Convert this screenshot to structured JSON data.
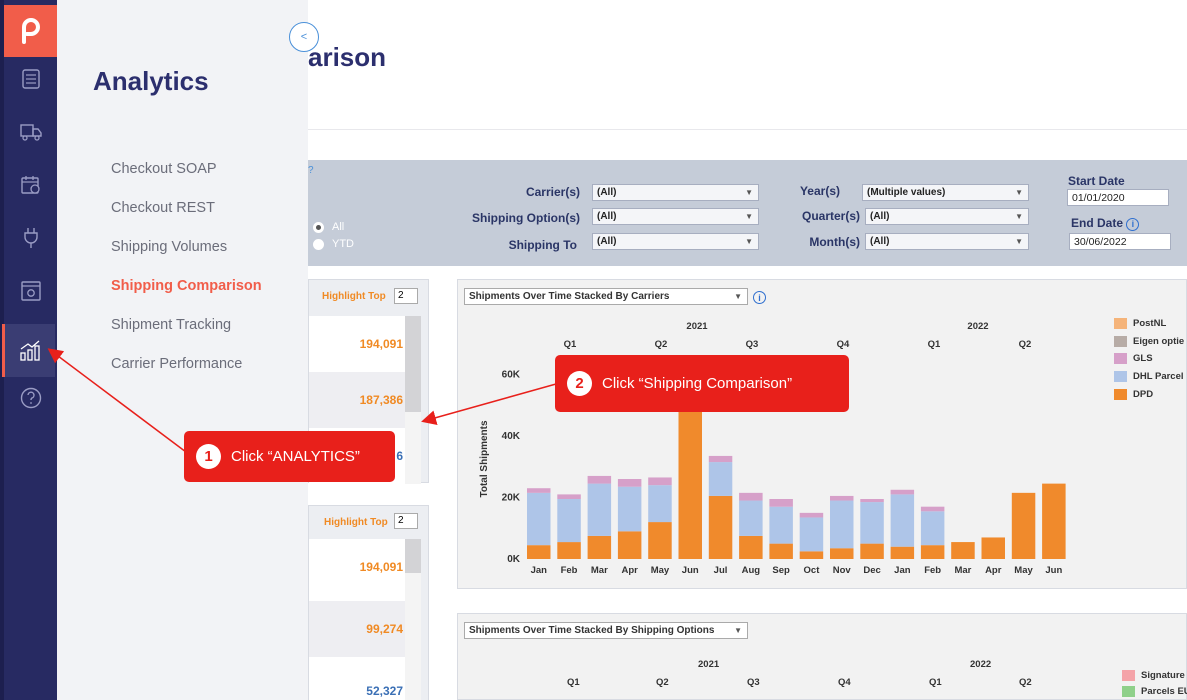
{
  "flyout": {
    "title": "Analytics",
    "items": [
      {
        "label": "Checkout SOAP"
      },
      {
        "label": "Checkout REST"
      },
      {
        "label": "Shipping Volumes"
      },
      {
        "label": "Shipping Comparison"
      },
      {
        "label": "Shipment Tracking"
      },
      {
        "label": "Carrier Performance"
      }
    ],
    "collapse_label": "<"
  },
  "page": {
    "title_visible": "arison"
  },
  "filters": {
    "carriers": {
      "label": "Carrier(s)",
      "value": "(All)"
    },
    "shipping_option": {
      "label": "Shipping Option(s)",
      "value": "(All)"
    },
    "shipping_to": {
      "label": "Shipping To",
      "value": "(All)"
    },
    "year": {
      "label": "Year(s)",
      "value": "(Multiple values)"
    },
    "quarter": {
      "label": "Quarter(s)",
      "value": "(All)"
    },
    "month": {
      "label": "Month(s)",
      "value": "(All)"
    },
    "start_date": {
      "label": "Start Date",
      "value": "01/01/2020"
    },
    "end_date": {
      "label": "End Date",
      "value": "30/06/2022"
    },
    "radio_all": "All",
    "radio_ytd": "YTD",
    "stray_text": "?"
  },
  "panels": {
    "top": {
      "highlight_label": "Highlight Top",
      "highlight_value": "2",
      "values": [
        "194,091",
        "187,386",
        "6"
      ]
    },
    "bottom": {
      "highlight_label": "Highlight Top",
      "highlight_value": "2",
      "values": [
        "194,091",
        "99,274",
        "52,327"
      ]
    }
  },
  "chart1": {
    "dropdown": "Shipments Over Time Stacked By Carriers",
    "ylabel": "Total Shipments",
    "years": [
      {
        "label": "2021"
      },
      {
        "label": "2022"
      }
    ],
    "quarters": [
      "Q1",
      "Q2",
      "Q3",
      "Q4",
      "Q1",
      "Q2"
    ],
    "legend": [
      {
        "name": "PostNL",
        "color": "#f5b47a"
      },
      {
        "name": "Eigen optie",
        "color": "#b7aca6"
      },
      {
        "name": "GLS",
        "color": "#d6a0c9"
      },
      {
        "name": "DHL Parcel",
        "color": "#aec5e8"
      },
      {
        "name": "DPD",
        "color": "#f08a2c"
      }
    ]
  },
  "chart_data": {
    "type": "bar",
    "stacked": true,
    "categories": [
      "Jan",
      "Feb",
      "Mar",
      "Apr",
      "May",
      "Jun",
      "Jul",
      "Aug",
      "Sep",
      "Oct",
      "Nov",
      "Dec",
      "Jan",
      "Feb",
      "Mar",
      "Apr",
      "May",
      "Jun"
    ],
    "ylabel": "Total Shipments",
    "yticks": [
      "0K",
      "20K",
      "40K",
      "60K"
    ],
    "ylim": [
      0,
      65000
    ],
    "series": [
      {
        "name": "DPD",
        "color": "#f08a2c",
        "values": [
          4500,
          5500,
          7500,
          9000,
          12000,
          48000,
          20500,
          7500,
          5000,
          2500,
          3500,
          5000,
          4000,
          4500,
          5500,
          7000,
          21500,
          24500
        ]
      },
      {
        "name": "DHL Parcel",
        "color": "#aec5e8",
        "values": [
          17000,
          14000,
          17000,
          14500,
          12000,
          0,
          11000,
          11500,
          12000,
          11000,
          15500,
          13500,
          17000,
          11000,
          0,
          0,
          0,
          0
        ]
      },
      {
        "name": "GLS",
        "color": "#d6a0c9",
        "values": [
          1500,
          1500,
          2500,
          2500,
          2500,
          0,
          2000,
          2500,
          2500,
          1500,
          1500,
          1000,
          1500,
          1500,
          0,
          0,
          0,
          0
        ]
      }
    ]
  },
  "chart2": {
    "dropdown": "Shipments Over Time Stacked By Shipping Options",
    "years": [
      {
        "label": "2021"
      },
      {
        "label": "2022"
      }
    ],
    "quarters": [
      "Q1",
      "Q2",
      "Q3",
      "Q4",
      "Q1",
      "Q2"
    ],
    "legend": [
      {
        "name": "Signature",
        "color": "#f4a3a8"
      },
      {
        "name": "Parcels EU",
        "color": "#8fd08a"
      }
    ]
  },
  "callouts": [
    {
      "num": "1",
      "text": "Click “ANALYTICS”"
    },
    {
      "num": "2",
      "text": "Click “Shipping Comparison”"
    }
  ],
  "icons": [
    "logo-icon",
    "orders-icon",
    "truck-icon",
    "calendar-icon",
    "plug-icon",
    "settings-window-icon",
    "analytics-icon",
    "help-icon"
  ]
}
